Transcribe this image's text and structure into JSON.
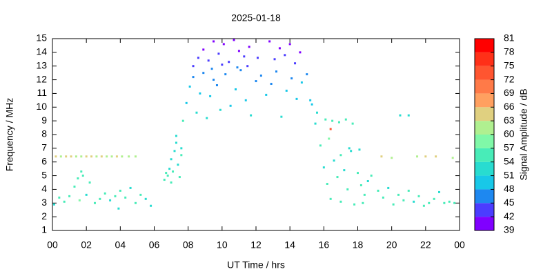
{
  "chart_data": {
    "type": "scatter",
    "title": "2025-01-18",
    "x_label": "UT Time / hrs",
    "y_label": "Frequency / MHz",
    "colorbar_label": "Signal Amplitude / dB",
    "xlim": [
      0,
      24
    ],
    "ylim": [
      1,
      15
    ],
    "xticks": [
      {
        "value": 0,
        "label": "00"
      },
      {
        "value": 2,
        "label": "02"
      },
      {
        "value": 4,
        "label": "04"
      },
      {
        "value": 6,
        "label": "06"
      },
      {
        "value": 8,
        "label": "08"
      },
      10,
      12,
      14,
      16,
      18,
      20,
      22,
      {
        "value": 24,
        "label": "00"
      }
    ],
    "yticks": [
      1,
      2,
      3,
      4,
      5,
      6,
      7,
      8,
      9,
      10,
      11,
      12,
      13,
      14,
      15
    ],
    "colorbar_ticks": [
      39,
      42,
      45,
      48,
      51,
      54,
      57,
      60,
      63,
      66,
      69,
      72,
      75,
      78,
      81
    ],
    "colorbar_colors": [
      "#8000ff",
      "#4b3cff",
      "#1e88f0",
      "#18c8e8",
      "#28dcd0",
      "#48ecb8",
      "#80f8a8",
      "#b0f090",
      "#e0d080",
      "#ffa060",
      "#ff7a48",
      "#ff5530",
      "#ff3018",
      "#ff0000"
    ],
    "x": [
      0.2,
      0.5,
      0.8,
      1.1,
      1.4,
      1.7,
      2.0,
      2.3,
      2.6,
      2.9,
      3.2,
      3.5,
      3.8,
      4.1,
      4.5,
      4.9,
      0.1,
      0.4,
      0.7,
      1.0,
      1.3,
      1.5,
      1.6,
      1.8,
      2.0,
      2.2,
      2.5,
      2.8,
      3.1,
      3.4,
      3.7,
      4.0,
      4.3,
      4.6,
      4.9,
      5.2,
      5.5,
      5.8,
      1.7,
      3.9,
      6.6,
      6.8,
      6.9,
      7.0,
      7.1,
      7.2,
      7.3,
      7.4,
      7.5,
      7.6,
      7.0,
      7.3,
      6.7,
      7.6,
      7.7,
      7.9,
      8.1,
      8.3,
      8.5,
      8.7,
      8.9,
      9.1,
      9.3,
      9.5,
      9.7,
      9.9,
      10.2,
      10.5,
      10.8,
      11.1,
      11.4,
      11.7,
      12.0,
      12.3,
      12.6,
      12.9,
      13.2,
      13.5,
      13.8,
      14.1,
      14.4,
      14.7,
      15.0,
      15.3,
      8.3,
      8.6,
      8.9,
      9.2,
      9.5,
      9.8,
      10.1,
      10.4,
      10.7,
      11.0,
      11.3,
      11.6,
      12.8,
      13.1,
      13.4,
      13.7,
      14.0,
      14.3,
      14.6,
      12.1,
      9.4,
      10.0,
      10.9,
      11.5,
      15.2,
      15.5,
      15.8,
      16.0,
      16.2,
      16.4,
      16.6,
      16.8,
      17.0,
      17.2,
      17.4,
      17.6,
      17.8,
      18.0,
      18.2,
      18.4,
      18.6,
      18.8,
      16.1,
      16.5,
      16.9,
      17.3,
      17.7,
      18.1,
      16.3,
      17.0,
      17.5,
      18.3,
      16.4,
      15.6,
      19.2,
      19.5,
      19.8,
      20.1,
      20.4,
      20.7,
      21.0,
      21.3,
      21.6,
      21.9,
      22.2,
      22.5,
      22.8,
      23.1,
      23.4,
      23.7,
      19.4,
      20.0,
      20.5,
      21.0,
      21.5,
      22.0,
      22.6,
      23.6
    ],
    "y": [
      6.4,
      6.4,
      6.4,
      6.4,
      6.4,
      6.4,
      6.4,
      6.4,
      6.4,
      6.4,
      6.4,
      6.4,
      6.4,
      6.4,
      6.4,
      6.4,
      2.9,
      3.4,
      3.1,
      3.5,
      4.2,
      4.8,
      3.2,
      5.0,
      3.6,
      4.5,
      3.0,
      3.3,
      3.7,
      3.2,
      3.5,
      3.9,
      3.4,
      4.1,
      3.0,
      3.6,
      3.3,
      2.8,
      5.3,
      2.6,
      4.7,
      5.0,
      5.5,
      6.2,
      5.3,
      6.8,
      7.4,
      5.8,
      4.9,
      6.5,
      4.5,
      7.9,
      5.2,
      7.0,
      9.0,
      10.3,
      11.5,
      12.2,
      9.6,
      11.0,
      12.5,
      9.2,
      10.8,
      12.0,
      11.6,
      9.8,
      12.4,
      10.1,
      11.3,
      12.7,
      10.5,
      9.4,
      11.9,
      12.3,
      10.9,
      11.7,
      12.6,
      9.3,
      11.2,
      12.1,
      10.6,
      11.8,
      12.4,
      10.2,
      13.0,
      13.6,
      14.2,
      13.4,
      14.8,
      13.9,
      14.6,
      13.3,
      14.9,
      14.1,
      13.7,
      14.4,
      14.8,
      13.5,
      14.3,
      13.8,
      14.6,
      13.2,
      14.0,
      13.6,
      12.8,
      13.1,
      12.9,
      13.0,
      10.5,
      8.8,
      7.2,
      5.6,
      4.4,
      3.3,
      6.1,
      4.9,
      3.1,
      5.4,
      4.0,
      6.8,
      2.9,
      5.2,
      4.3,
      3.6,
      4.6,
      5.0,
      9.1,
      9.0,
      8.9,
      9.1,
      8.8,
      6.9,
      7.7,
      6.5,
      7.0,
      3.0,
      8.4,
      9.6,
      3.9,
      3.4,
      4.1,
      2.9,
      3.6,
      3.2,
      3.9,
      3.1,
      3.5,
      2.8,
      3.0,
      3.3,
      3.8,
      3.0,
      3.1,
      3.0,
      6.4,
      6.3,
      9.4,
      9.4,
      6.4,
      6.4,
      6.4,
      6.3
    ],
    "values": [
      63,
      62,
      64,
      63,
      62,
      61,
      63,
      64,
      62,
      63,
      61,
      62,
      63,
      62,
      60,
      61,
      53,
      54,
      55,
      54,
      56,
      55,
      57,
      54,
      53,
      55,
      54,
      56,
      54,
      53,
      55,
      54,
      56,
      53,
      54,
      55,
      53,
      52,
      54,
      52,
      55,
      54,
      53,
      52,
      54,
      53,
      52,
      53,
      55,
      54,
      56,
      53,
      56,
      52,
      54,
      50,
      48,
      47,
      52,
      49,
      46,
      53,
      48,
      46,
      47,
      51,
      46,
      50,
      48,
      46,
      49,
      52,
      47,
      46,
      48,
      47,
      46,
      53,
      48,
      47,
      49,
      48,
      47,
      50,
      44,
      43,
      41,
      43,
      40,
      42,
      41,
      43,
      40,
      41,
      42,
      41,
      40,
      42,
      41,
      42,
      40,
      43,
      41,
      42,
      45,
      44,
      45,
      44,
      49,
      53,
      54,
      53,
      54,
      55,
      52,
      54,
      55,
      53,
      54,
      52,
      56,
      54,
      55,
      56,
      53,
      54,
      54,
      55,
      54,
      55,
      56,
      53,
      58,
      54,
      53,
      56,
      72,
      51,
      54,
      55,
      53,
      54,
      56,
      55,
      54,
      53,
      55,
      56,
      54,
      55,
      53,
      54,
      55,
      54,
      63,
      62,
      52,
      52,
      62,
      63,
      65,
      61
    ]
  }
}
